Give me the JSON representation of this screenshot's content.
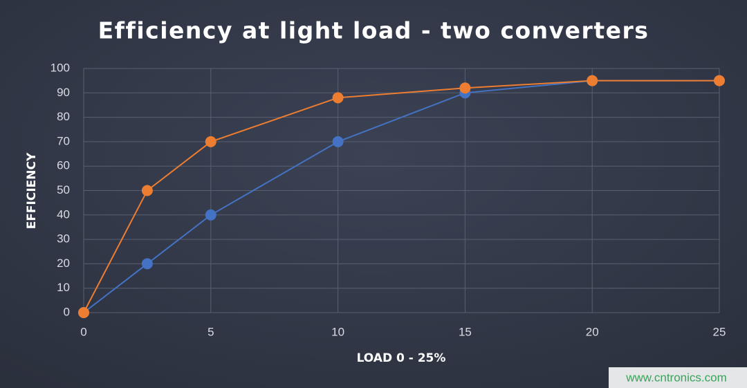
{
  "chart_data": {
    "type": "line",
    "title": "Efficiency at light load - two converters",
    "xlabel": "LOAD 0 - 25%",
    "ylabel": "EFFICIENCY",
    "x": [
      0,
      2.5,
      5,
      10,
      15,
      20,
      25
    ],
    "series": [
      {
        "color": "#4472c4",
        "values": [
          0,
          20,
          40,
          70,
          90,
          95,
          95
        ]
      },
      {
        "color": "#ed7d31",
        "values": [
          0,
          50,
          70,
          88,
          92,
          95,
          95
        ]
      }
    ],
    "xlim": [
      0,
      25
    ],
    "xticks": [
      0,
      5,
      10,
      15,
      20,
      25
    ],
    "ylim": [
      0,
      100
    ],
    "yticks": [
      0,
      10,
      20,
      30,
      40,
      50,
      60,
      70,
      80,
      90,
      100
    ],
    "grid": true
  },
  "watermark": "www.cntronics.com"
}
